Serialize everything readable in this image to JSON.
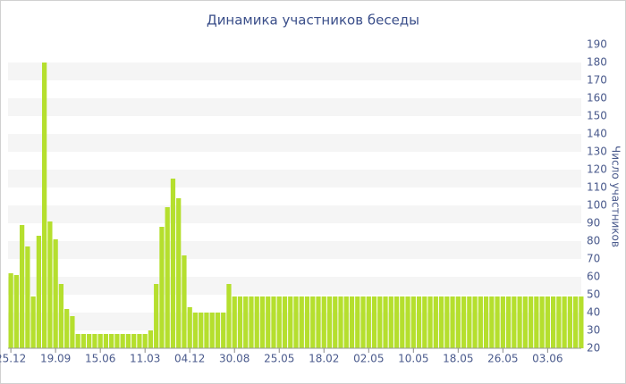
{
  "chart_data": {
    "type": "bar",
    "title": "Динамика участников беседы",
    "y_label": "Число участников",
    "categories": [
      "25.12",
      null,
      null,
      null,
      null,
      null,
      null,
      null,
      "19.09",
      null,
      null,
      null,
      null,
      null,
      null,
      null,
      "15.06",
      null,
      null,
      null,
      null,
      null,
      null,
      null,
      "11.03",
      null,
      null,
      null,
      null,
      null,
      null,
      null,
      "04.12",
      null,
      null,
      null,
      null,
      null,
      null,
      null,
      "30.08",
      null,
      null,
      null,
      null,
      null,
      null,
      null,
      "25.05",
      null,
      null,
      null,
      null,
      null,
      null,
      null,
      "18.02",
      null,
      null,
      null,
      null,
      null,
      null,
      null,
      "02.05",
      null,
      null,
      null,
      null,
      null,
      null,
      null,
      "10.05",
      null,
      null,
      null,
      null,
      null,
      null,
      null,
      "18.05",
      null,
      null,
      null,
      null,
      null,
      null,
      null,
      "26.05",
      null,
      null,
      null,
      null,
      null,
      null,
      null,
      "03.06",
      null,
      null,
      null,
      null,
      null,
      null
    ],
    "values": [
      62,
      61,
      89,
      77,
      49,
      83,
      180,
      91,
      81,
      56,
      42,
      38,
      28,
      28,
      28,
      28,
      28,
      28,
      28,
      28,
      28,
      28,
      28,
      28,
      28,
      30,
      56,
      88,
      99,
      115,
      104,
      72,
      43,
      40,
      40,
      40,
      40,
      40,
      40,
      56,
      49,
      49,
      49,
      49,
      49,
      49,
      49,
      49,
      49,
      49,
      49,
      49,
      49,
      49,
      49,
      49,
      49,
      49,
      49,
      49,
      49,
      49,
      49,
      49,
      49,
      49,
      49,
      49,
      49,
      49,
      49,
      49,
      49,
      49,
      49,
      49,
      49,
      49,
      49,
      49,
      49,
      49,
      49,
      49,
      49,
      49,
      49,
      49,
      49,
      49,
      49,
      49,
      49,
      49,
      49,
      49,
      49,
      49,
      49,
      49,
      49,
      49,
      49
    ],
    "color": "#b5df2e",
    "ylim": [
      20,
      190
    ],
    "yticks": [
      20,
      30,
      40,
      50,
      60,
      70,
      80,
      90,
      100,
      110,
      120,
      130,
      140,
      150,
      160,
      170,
      180,
      190
    ],
    "grid": "bands",
    "y_axis_side": "right"
  }
}
